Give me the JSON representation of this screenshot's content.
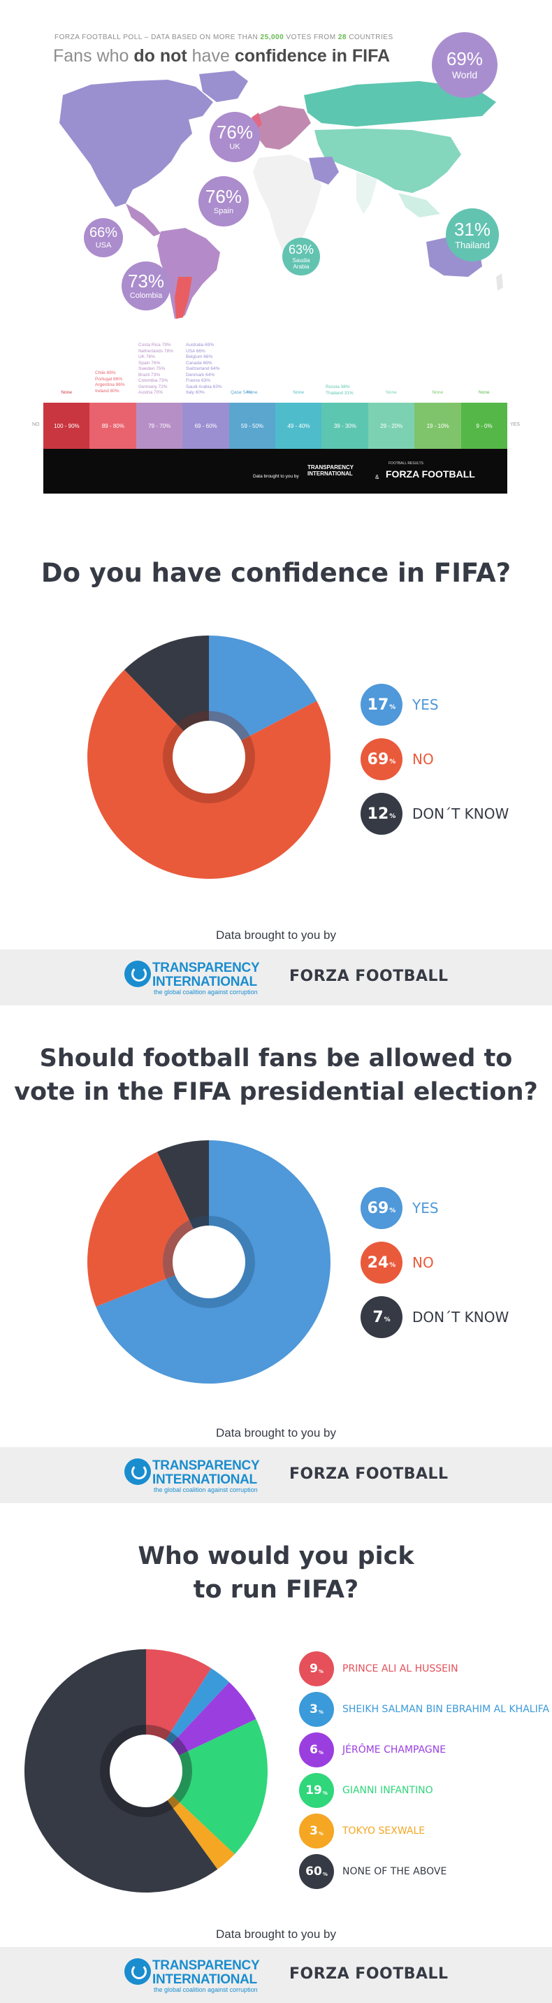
{
  "map": {
    "source_prefix": "FORZA FOOTBALL POLL – DATA BASED ON MORE THAN ",
    "votes": "25,000",
    "source_mid": " VOTES FROM ",
    "countries": "28",
    "source_suffix": " COUNTRIES",
    "title_pre": "Fans who ",
    "title_bold": "do not",
    "title_mid": " have ",
    "title_bold2": "confidence in FIFA",
    "bubbles": [
      {
        "pct": "69%",
        "label": "World",
        "color": "#a98ecf"
      },
      {
        "pct": "76%",
        "label": "UK",
        "color": "#ab8ccc"
      },
      {
        "pct": "76%",
        "label": "Spain",
        "color": "#ab8ccc"
      },
      {
        "pct": "66%",
        "label": "USA",
        "color": "#ab8ccc"
      },
      {
        "pct": "73%",
        "label": "Colombia",
        "color": "#ab8ccc"
      },
      {
        "pct": "63%",
        "label": "Saudia Arabia",
        "color": "#62c3b1"
      },
      {
        "pct": "31%",
        "label": "Thailand",
        "color": "#62c3b1"
      }
    ],
    "scale": {
      "left_label": "NO",
      "right_label": "YES",
      "bands": [
        {
          "range": "100 - 90%",
          "head": "None",
          "color": "#c9363f"
        },
        {
          "range": "89 - 80%",
          "head": "",
          "color": "#e9636e"
        },
        {
          "range": "79 - 70%",
          "head": "",
          "color": "#b78fc7"
        },
        {
          "range": "69 - 60%",
          "head": "",
          "color": "#9b8fd1"
        },
        {
          "range": "59 - 50%",
          "head": "None",
          "color": "#5aa6cf"
        },
        {
          "range": "49 - 40%",
          "head": "None",
          "color": "#4fbccb"
        },
        {
          "range": "39 - 30%",
          "head": "",
          "color": "#5dc6b0"
        },
        {
          "range": "29 - 20%",
          "head": "None",
          "color": "#7dd1b3"
        },
        {
          "range": "19 - 10%",
          "head": "None",
          "color": "#7fc46a"
        },
        {
          "range": "9 - 0%",
          "head": "None",
          "color": "#55b748"
        }
      ],
      "col_8089": [
        "Chile 89%",
        "Portugal 86%",
        "Argentina 86%",
        "Ireland 80%"
      ],
      "col_7079_a": [
        "Costa Rica 79%",
        "Netherlands 78%",
        "UK 76%",
        "Spain 76%",
        "Sweden 75%",
        "Brazil 73%",
        "Colombia 73%",
        "Germany 72%",
        "Austria 70%"
      ],
      "col_6069": [
        "Australia 69%",
        "USA 66%",
        "Belgium 66%",
        "Canada 66%",
        "Switzerland 64%",
        "Denmark 64%",
        "France 63%",
        "Saudi Arabia 63%",
        "Italy 60%"
      ],
      "col_3039": [
        "Russia 38%",
        "Thailand 31%"
      ],
      "col_5059": "Qatar 54%"
    },
    "footer": {
      "brought": "Data brought to you by",
      "ti": "TRANSPARENCY INTERNATIONAL",
      "amp": "&",
      "ff_small": "FOOTBALL RESULTS",
      "ff": "FORZA FOOTBALL"
    }
  },
  "q1": {
    "title": "Do you have confidence in FIFA?",
    "legend": [
      {
        "value": "17",
        "unit": "%",
        "label": "YES",
        "color": "#4f98d9",
        "label_color": "#4f98d9"
      },
      {
        "value": "69",
        "unit": "%",
        "label": "NO",
        "color": "#e95a3b",
        "label_color": "#e95a3b"
      },
      {
        "value": "12",
        "unit": "%",
        "label": "DON´T KNOW",
        "color": "#363a44",
        "label_color": "#363a44"
      }
    ],
    "brought": "Data brought to you by"
  },
  "q2": {
    "title_line1": "Should football fans be allowed to",
    "title_line2": "vote in the FIFA presidential election?",
    "legend": [
      {
        "value": "69",
        "unit": "%",
        "label": "YES",
        "color": "#4f98d9",
        "label_color": "#4f98d9"
      },
      {
        "value": "24",
        "unit": "%",
        "label": "NO",
        "color": "#e95a3b",
        "label_color": "#e95a3b"
      },
      {
        "value": "7",
        "unit": "%",
        "label": "DON´T KNOW",
        "color": "#363a44",
        "label_color": "#363a44"
      }
    ],
    "brought": "Data brought to you by"
  },
  "q3": {
    "title_line1": "Who would you pick",
    "title_line2": "to run FIFA?",
    "legend": [
      {
        "value": "9",
        "unit": "%",
        "label": "Prince Ali Al Hussein",
        "color": "#e5505a",
        "label_color": "#e5505a"
      },
      {
        "value": "3",
        "unit": "%",
        "label": "Sheikh Salman bin Ebrahim Al Khalifa",
        "color": "#3b9ad9",
        "label_color": "#3b9ad9"
      },
      {
        "value": "6",
        "unit": "%",
        "label": "Jérôme Champagne",
        "color": "#9b3ee0",
        "label_color": "#9b3ee0"
      },
      {
        "value": "19",
        "unit": "%",
        "label": "Gianni Infantino",
        "color": "#2fd67a",
        "label_color": "#2fd67a"
      },
      {
        "value": "3",
        "unit": "%",
        "label": "Tokyo Sexwale",
        "color": "#f5a623",
        "label_color": "#f5a623"
      },
      {
        "value": "60",
        "unit": "%",
        "label": "None of the above",
        "color": "#363a44",
        "label_color": "#363a44"
      }
    ],
    "brought": "Data brought to you by"
  },
  "sponsor": {
    "ti_line1": "TRANSPARENCY",
    "ti_line2": "INTERNATIONAL",
    "ti_tag": "the global coalition against corruption",
    "ff": "FORZA FOOTBALL"
  },
  "chart_data": [
    {
      "type": "pie",
      "title": "Do you have confidence in FIFA?",
      "categories": [
        "YES",
        "NO",
        "DON´T KNOW"
      ],
      "values": [
        17,
        69,
        12
      ],
      "colors": [
        "#4f98d9",
        "#e95a3b",
        "#363a44"
      ]
    },
    {
      "type": "pie",
      "title": "Should football fans be allowed to vote in the FIFA presidential election?",
      "categories": [
        "YES",
        "NO",
        "DON´T KNOW"
      ],
      "values": [
        69,
        24,
        7
      ],
      "colors": [
        "#4f98d9",
        "#e95a3b",
        "#363a44"
      ]
    },
    {
      "type": "pie",
      "title": "Who would you pick to run FIFA?",
      "categories": [
        "Prince Ali Al Hussein",
        "Sheikh Salman bin Ebrahim Al Khalifa",
        "Jérôme Champagne",
        "Gianni Infantino",
        "Tokyo Sexwale",
        "None of the above"
      ],
      "values": [
        9,
        3,
        6,
        19,
        3,
        60
      ],
      "colors": [
        "#e5505a",
        "#3b9ad9",
        "#9b3ee0",
        "#2fd67a",
        "#f5a623",
        "#363a44"
      ]
    }
  ]
}
